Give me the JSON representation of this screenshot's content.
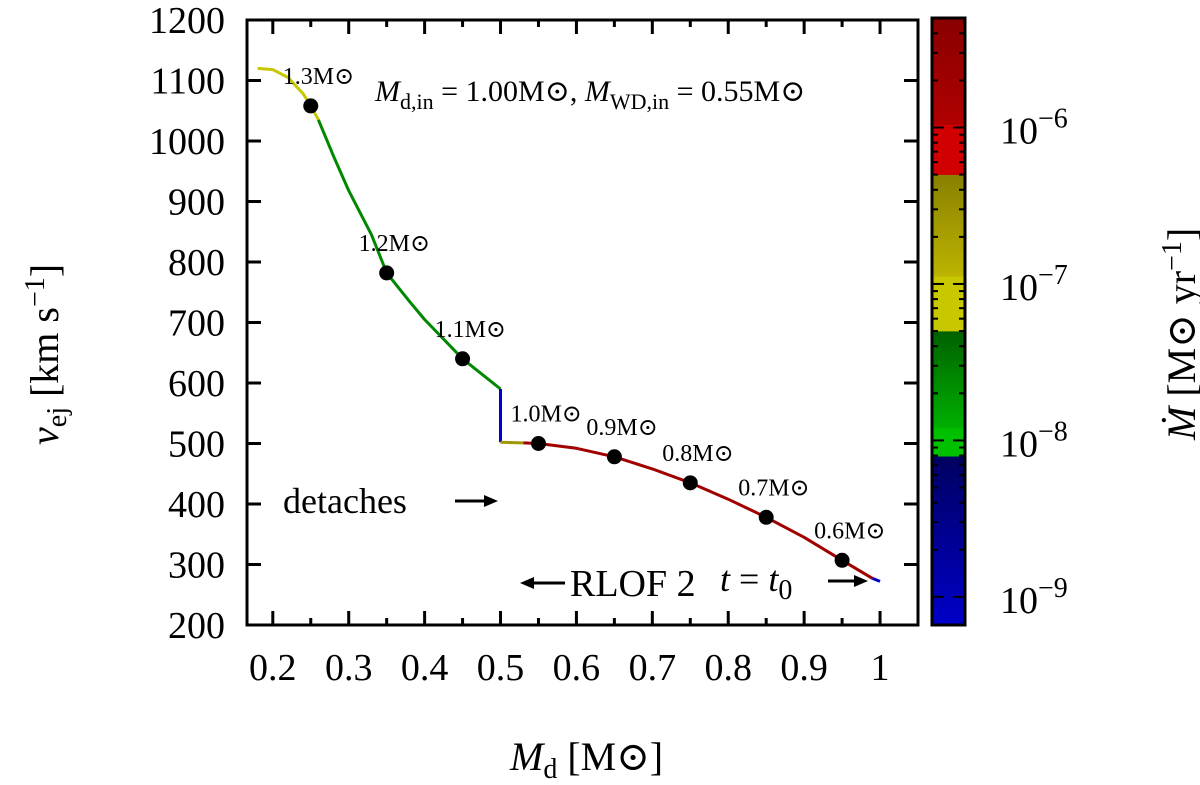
{
  "chart_data": {
    "type": "line",
    "title": "",
    "xlabel": {
      "main": "M",
      "sub": "d",
      "unit": " [M⊙]"
    },
    "ylabel": {
      "main": "v",
      "sub": "ej",
      "unit": " [km s",
      "sup": "−1",
      "close": "]"
    },
    "xlim": [
      0.166,
      1.05
    ],
    "ylim": [
      200,
      1200
    ],
    "xticks": [
      0.2,
      0.3,
      0.4,
      0.5,
      0.6,
      0.7,
      0.8,
      0.9,
      1.0
    ],
    "xtick_labels": [
      "0.2",
      "0.3",
      "0.4",
      "0.5",
      "0.6",
      "0.7",
      "0.8",
      "0.9",
      "1"
    ],
    "yticks": [
      200,
      300,
      400,
      500,
      600,
      700,
      800,
      900,
      1000,
      1100,
      1200
    ],
    "ytick_labels": [
      "200",
      "300",
      "400",
      "500",
      "600",
      "700",
      "800",
      "900",
      "1000",
      "1100",
      "1200"
    ],
    "series": [
      {
        "name": "yellow-segment",
        "color": "#c8c800",
        "x": [
          0.18,
          0.2,
          0.22,
          0.24,
          0.25,
          0.26
        ],
        "y": [
          1120,
          1118,
          1105,
          1078,
          1058,
          1035
        ]
      },
      {
        "name": "green-segment",
        "color": "#008800",
        "x": [
          0.26,
          0.28,
          0.3,
          0.33,
          0.35,
          0.38,
          0.4,
          0.45,
          0.5
        ],
        "y": [
          1035,
          975,
          918,
          845,
          782,
          735,
          705,
          640,
          590
        ]
      },
      {
        "name": "rlof-segment",
        "color": "#0000c8",
        "x": [
          0.5,
          0.5
        ],
        "y": [
          590,
          502
        ]
      },
      {
        "name": "olive-segment",
        "color": "#a09800",
        "x": [
          0.5,
          0.53
        ],
        "y": [
          502,
          501
        ]
      },
      {
        "name": "darkred-segment",
        "color": "#a00000",
        "x": [
          0.53,
          0.55,
          0.6,
          0.65,
          0.7,
          0.75,
          0.8,
          0.85,
          0.9,
          0.95,
          0.99
        ],
        "y": [
          501,
          500,
          492,
          478,
          458,
          435,
          408,
          378,
          345,
          307,
          277
        ]
      },
      {
        "name": "end-segment",
        "color": "#0000c8",
        "x": [
          0.99,
          1.0
        ],
        "y": [
          277,
          272
        ]
      }
    ],
    "markers": [
      {
        "x": 0.25,
        "y": 1058,
        "label": "1.3M⊙"
      },
      {
        "x": 0.35,
        "y": 782,
        "label": "1.2M⊙"
      },
      {
        "x": 0.45,
        "y": 640,
        "label": "1.1M⊙"
      },
      {
        "x": 0.55,
        "y": 500,
        "label": "1.0M⊙"
      },
      {
        "x": 0.65,
        "y": 478,
        "label": "0.9M⊙"
      },
      {
        "x": 0.75,
        "y": 435,
        "label": "0.8M⊙"
      },
      {
        "x": 0.85,
        "y": 378,
        "label": "0.7M⊙"
      },
      {
        "x": 0.95,
        "y": 307,
        "label": "0.6M⊙"
      }
    ],
    "annotations": {
      "params": {
        "m1": "M",
        "m1sub": "d,in",
        "m1val": " = 1.00M⊙, ",
        "m2": "M",
        "m2sub": "WD,in",
        "m2val": " = 0.55M⊙"
      },
      "rlof": "RLOF 2",
      "detaches": "detaches",
      "t0": {
        "t": "t",
        "eq": " = ",
        "t2": "t",
        "sub": "0"
      }
    },
    "colorbar": {
      "label": {
        "main": "Ṁ",
        "unit": " [M⊙ yr",
        "sup": "−1",
        "close": "]"
      },
      "scale": "log",
      "range": [
        -9.18,
        -5.3
      ],
      "ticks": [
        -9,
        -8,
        -7,
        -6
      ],
      "tick_labels": [
        {
          "base": "10",
          "exp": "−9"
        },
        {
          "base": "10",
          "exp": "−8"
        },
        {
          "base": "10",
          "exp": "−7"
        },
        {
          "base": "10",
          "exp": "−6"
        }
      ],
      "bands": [
        {
          "from": -9.18,
          "to": -8.1,
          "c1": "#0000c8",
          "c2": "#000060"
        },
        {
          "from": -8.1,
          "to": -7.92,
          "c1": "#00c000",
          "c2": "#00c000"
        },
        {
          "from": -7.92,
          "to": -7.3,
          "c1": "#00b000",
          "c2": "#006000"
        },
        {
          "from": -7.3,
          "to": -6.95,
          "c1": "#c8c800",
          "c2": "#c8c800"
        },
        {
          "from": -6.95,
          "to": -6.3,
          "c1": "#bcb400",
          "c2": "#888000"
        },
        {
          "from": -6.3,
          "to": -5.98,
          "c1": "#d00000",
          "c2": "#d00000"
        },
        {
          "from": -5.98,
          "to": -5.3,
          "c1": "#b00000",
          "c2": "#880000"
        }
      ]
    }
  }
}
